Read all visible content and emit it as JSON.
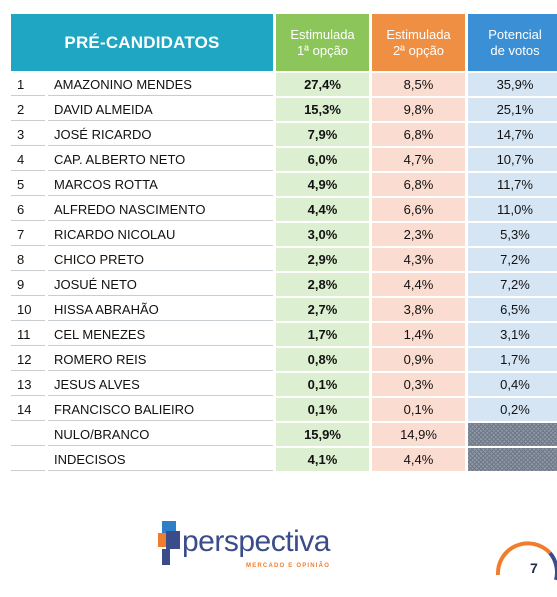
{
  "header": {
    "candidates": "PRÉ-CANDIDATOS",
    "e1_line1": "Estimulada",
    "e1_line2": "1ª opção",
    "e2_line1": "Estimulada",
    "e2_line2": "2ª opção",
    "pot_line1": "Potencial",
    "pot_line2": "de votos"
  },
  "rows": [
    {
      "num": "1",
      "name": "AMAZONINO MENDES",
      "e1": "27,4%",
      "e2": "8,5%",
      "pot": "35,9%"
    },
    {
      "num": "2",
      "name": "DAVID ALMEIDA",
      "e1": "15,3%",
      "e2": "9,8%",
      "pot": "25,1%"
    },
    {
      "num": "3",
      "name": "JOSÉ RICARDO",
      "e1": "7,9%",
      "e2": "6,8%",
      "pot": "14,7%"
    },
    {
      "num": "4",
      "name": "CAP. ALBERTO NETO",
      "e1": "6,0%",
      "e2": "4,7%",
      "pot": "10,7%"
    },
    {
      "num": "5",
      "name": "MARCOS ROTTA",
      "e1": "4,9%",
      "e2": "6,8%",
      "pot": "11,7%"
    },
    {
      "num": "6",
      "name": "ALFREDO NASCIMENTO",
      "e1": "4,4%",
      "e2": "6,6%",
      "pot": "11,0%"
    },
    {
      "num": "7",
      "name": "RICARDO NICOLAU",
      "e1": "3,0%",
      "e2": "2,3%",
      "pot": "5,3%"
    },
    {
      "num": "8",
      "name": "CHICO PRETO",
      "e1": "2,9%",
      "e2": "4,3%",
      "pot": "7,2%"
    },
    {
      "num": "9",
      "name": "JOSUÉ NETO",
      "e1": "2,8%",
      "e2": "4,4%",
      "pot": "7,2%"
    },
    {
      "num": "10",
      "name": "HISSA ABRAHÃO",
      "e1": "2,7%",
      "e2": "3,8%",
      "pot": "6,5%"
    },
    {
      "num": "11",
      "name": "CEL MENEZES",
      "e1": "1,7%",
      "e2": "1,4%",
      "pot": "3,1%"
    },
    {
      "num": "12",
      "name": "ROMERO REIS",
      "e1": "0,8%",
      "e2": "0,9%",
      "pot": "1,7%"
    },
    {
      "num": "13",
      "name": "JESUS ALVES",
      "e1": "0,1%",
      "e2": "0,3%",
      "pot": "0,4%"
    },
    {
      "num": "14",
      "name": "FRANCISCO BALIEIRO",
      "e1": "0,1%",
      "e2": "0,1%",
      "pot": "0,2%"
    },
    {
      "num": "",
      "name": "NULO/BRANCO",
      "e1": "15,9%",
      "e2": "14,9%",
      "pot": ""
    },
    {
      "num": "",
      "name": "INDECISOS",
      "e1": "4,1%",
      "e2": "4,4%",
      "pot": ""
    }
  ],
  "logo": {
    "name": "perspectiva",
    "tagline": "MERCADO E OPINIÃO"
  },
  "page_number": "7",
  "colors": {
    "candidates_header": "#1ea6c2",
    "e1_header": "#8cc65a",
    "e2_header": "#ef8f43",
    "pot_header": "#3b8fd5"
  }
}
